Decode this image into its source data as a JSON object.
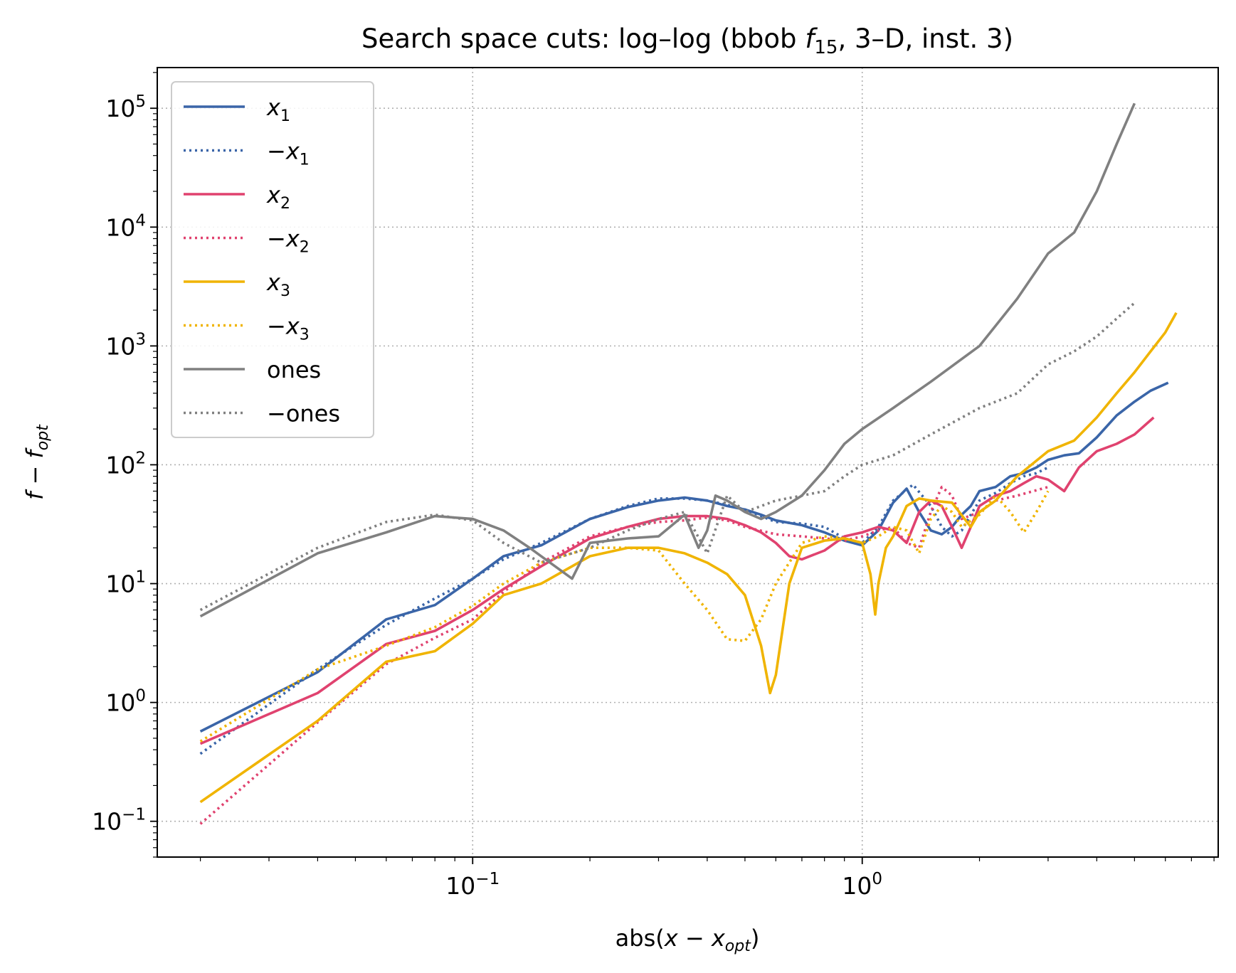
{
  "chart_data": {
    "type": "line",
    "title_parts": [
      "Search space cuts: log–log (bbob ",
      "f",
      "15",
      ", 3–D, inst. 3)"
    ],
    "xlabel_parts": [
      "abs(",
      "x",
      " − ",
      "x",
      "opt",
      ")"
    ],
    "ylabel_parts": [
      "f",
      " − ",
      "f",
      "opt"
    ],
    "xscale": "log",
    "yscale": "log",
    "xlim": [
      0.0155,
      8.2
    ],
    "ylim": [
      0.05,
      220000
    ],
    "x_ticks": [
      {
        "value": 0.1,
        "base": "10",
        "exp": "−1"
      },
      {
        "value": 1,
        "base": "10",
        "exp": "0"
      }
    ],
    "y_ticks": [
      {
        "value": 0.1,
        "base": "10",
        "exp": "−1"
      },
      {
        "value": 1,
        "base": "10",
        "exp": "0"
      },
      {
        "value": 10,
        "base": "10",
        "exp": "1"
      },
      {
        "value": 100,
        "base": "10",
        "exp": "2"
      },
      {
        "value": 1000,
        "base": "10",
        "exp": "3"
      },
      {
        "value": 10000,
        "base": "10",
        "exp": "4"
      },
      {
        "value": 100000,
        "base": "10",
        "exp": "5"
      }
    ],
    "grid": true,
    "legend_position": "top-left",
    "series": [
      {
        "name": "x1",
        "label_main": "x",
        "label_sub": "1",
        "label_prefix": "",
        "italic": true,
        "color": "#3a65a8",
        "dash": "solid",
        "points": [
          [
            0.02,
            0.57
          ],
          [
            0.04,
            1.8
          ],
          [
            0.06,
            5.0
          ],
          [
            0.08,
            6.6
          ],
          [
            0.1,
            11
          ],
          [
            0.12,
            17
          ],
          [
            0.15,
            21
          ],
          [
            0.2,
            35
          ],
          [
            0.25,
            44
          ],
          [
            0.3,
            50
          ],
          [
            0.35,
            53
          ],
          [
            0.4,
            50
          ],
          [
            0.45,
            45
          ],
          [
            0.5,
            42
          ],
          [
            0.55,
            38
          ],
          [
            0.6,
            34
          ],
          [
            0.7,
            31
          ],
          [
            0.8,
            27
          ],
          [
            0.9,
            23
          ],
          [
            1.0,
            21
          ],
          [
            1.1,
            28
          ],
          [
            1.2,
            48
          ],
          [
            1.3,
            63
          ],
          [
            1.4,
            40
          ],
          [
            1.5,
            28
          ],
          [
            1.6,
            26
          ],
          [
            1.7,
            30
          ],
          [
            1.8,
            38
          ],
          [
            1.9,
            45
          ],
          [
            2.0,
            60
          ],
          [
            2.2,
            65
          ],
          [
            2.4,
            80
          ],
          [
            2.6,
            85
          ],
          [
            2.8,
            95
          ],
          [
            3.0,
            110
          ],
          [
            3.3,
            120
          ],
          [
            3.6,
            125
          ],
          [
            4.0,
            170
          ],
          [
            4.5,
            260
          ],
          [
            5.0,
            340
          ],
          [
            5.5,
            420
          ],
          [
            6.1,
            490
          ]
        ]
      },
      {
        "name": "−x1",
        "label_main": "x",
        "label_sub": "1",
        "label_prefix": "−",
        "italic": true,
        "color": "#3a65a8",
        "dash": "dotted",
        "points": [
          [
            0.02,
            0.37
          ],
          [
            0.04,
            1.9
          ],
          [
            0.06,
            4.5
          ],
          [
            0.08,
            7.5
          ],
          [
            0.1,
            11
          ],
          [
            0.12,
            16
          ],
          [
            0.15,
            22
          ],
          [
            0.2,
            35
          ],
          [
            0.25,
            45
          ],
          [
            0.3,
            52
          ],
          [
            0.35,
            52
          ],
          [
            0.4,
            50
          ],
          [
            0.45,
            46
          ],
          [
            0.5,
            42
          ],
          [
            0.55,
            37
          ],
          [
            0.6,
            33
          ],
          [
            0.7,
            32
          ],
          [
            0.8,
            30
          ],
          [
            0.9,
            24
          ],
          [
            1.0,
            22
          ],
          [
            1.1,
            30
          ],
          [
            1.2,
            50
          ],
          [
            1.35,
            68
          ],
          [
            1.5,
            45
          ],
          [
            1.6,
            30
          ],
          [
            1.7,
            25
          ],
          [
            1.8,
            28
          ],
          [
            1.9,
            38
          ],
          [
            2.0,
            50
          ],
          [
            2.2,
            58
          ],
          [
            2.4,
            70
          ],
          [
            2.6,
            80
          ],
          [
            2.8,
            85
          ],
          [
            3.0,
            95
          ]
        ]
      },
      {
        "name": "x2",
        "label_main": "x",
        "label_sub": "2",
        "label_prefix": "",
        "italic": true,
        "color": "#e0426f",
        "dash": "solid",
        "points": [
          [
            0.02,
            0.45
          ],
          [
            0.04,
            1.2
          ],
          [
            0.06,
            3.1
          ],
          [
            0.08,
            4.0
          ],
          [
            0.1,
            6.0
          ],
          [
            0.12,
            9.0
          ],
          [
            0.15,
            14
          ],
          [
            0.2,
            24
          ],
          [
            0.25,
            30
          ],
          [
            0.3,
            35
          ],
          [
            0.35,
            37
          ],
          [
            0.4,
            37
          ],
          [
            0.45,
            35
          ],
          [
            0.5,
            31
          ],
          [
            0.55,
            27
          ],
          [
            0.6,
            22
          ],
          [
            0.65,
            17
          ],
          [
            0.7,
            16
          ],
          [
            0.8,
            19
          ],
          [
            0.9,
            25
          ],
          [
            1.0,
            27
          ],
          [
            1.1,
            30
          ],
          [
            1.2,
            28
          ],
          [
            1.3,
            22
          ],
          [
            1.4,
            40
          ],
          [
            1.5,
            50
          ],
          [
            1.6,
            45
          ],
          [
            1.7,
            30
          ],
          [
            1.8,
            20
          ],
          [
            1.9,
            30
          ],
          [
            2.0,
            45
          ],
          [
            2.2,
            55
          ],
          [
            2.4,
            60
          ],
          [
            2.6,
            70
          ],
          [
            2.8,
            80
          ],
          [
            3.0,
            75
          ],
          [
            3.3,
            60
          ],
          [
            3.6,
            95
          ],
          [
            4.0,
            130
          ],
          [
            4.5,
            150
          ],
          [
            5.0,
            180
          ],
          [
            5.6,
            250
          ]
        ]
      },
      {
        "name": "−x2",
        "label_main": "x",
        "label_sub": "2",
        "label_prefix": "−",
        "italic": true,
        "color": "#e0426f",
        "dash": "dotted",
        "points": [
          [
            0.02,
            0.095
          ],
          [
            0.04,
            0.68
          ],
          [
            0.06,
            2.1
          ],
          [
            0.08,
            3.5
          ],
          [
            0.1,
            5.0
          ],
          [
            0.12,
            8.5
          ],
          [
            0.15,
            15
          ],
          [
            0.2,
            25
          ],
          [
            0.25,
            30
          ],
          [
            0.3,
            33
          ],
          [
            0.35,
            34
          ],
          [
            0.4,
            36
          ],
          [
            0.45,
            34
          ],
          [
            0.5,
            30
          ],
          [
            0.6,
            26
          ],
          [
            0.7,
            25
          ],
          [
            0.8,
            24
          ],
          [
            0.9,
            23
          ],
          [
            1.0,
            25
          ],
          [
            1.1,
            28
          ],
          [
            1.2,
            30
          ],
          [
            1.3,
            22
          ],
          [
            1.4,
            20
          ],
          [
            1.5,
            40
          ],
          [
            1.6,
            65
          ],
          [
            1.7,
            55
          ],
          [
            1.8,
            35
          ],
          [
            2.0,
            40
          ],
          [
            2.2,
            50
          ],
          [
            2.5,
            55
          ],
          [
            3.0,
            65
          ]
        ]
      },
      {
        "name": "x3",
        "label_main": "x",
        "label_sub": "3",
        "label_prefix": "",
        "italic": true,
        "color": "#f0b400",
        "dash": "solid",
        "points": [
          [
            0.02,
            0.145
          ],
          [
            0.04,
            0.7
          ],
          [
            0.06,
            2.2
          ],
          [
            0.08,
            2.7
          ],
          [
            0.1,
            4.6
          ],
          [
            0.12,
            8.0
          ],
          [
            0.15,
            10
          ],
          [
            0.2,
            17
          ],
          [
            0.25,
            20
          ],
          [
            0.3,
            20
          ],
          [
            0.35,
            18
          ],
          [
            0.4,
            15
          ],
          [
            0.45,
            12
          ],
          [
            0.5,
            8.0
          ],
          [
            0.55,
            3.0
          ],
          [
            0.58,
            1.2
          ],
          [
            0.6,
            1.7
          ],
          [
            0.65,
            10
          ],
          [
            0.7,
            20
          ],
          [
            0.8,
            23
          ],
          [
            0.9,
            24
          ],
          [
            1.0,
            22
          ],
          [
            1.05,
            12
          ],
          [
            1.08,
            5.5
          ],
          [
            1.1,
            10
          ],
          [
            1.15,
            20
          ],
          [
            1.2,
            25
          ],
          [
            1.3,
            45
          ],
          [
            1.4,
            52
          ],
          [
            1.5,
            50
          ],
          [
            1.7,
            48
          ],
          [
            1.9,
            30
          ],
          [
            2.0,
            40
          ],
          [
            2.2,
            50
          ],
          [
            2.5,
            80
          ],
          [
            3.0,
            130
          ],
          [
            3.5,
            160
          ],
          [
            4.0,
            250
          ],
          [
            4.5,
            400
          ],
          [
            5.0,
            600
          ],
          [
            5.5,
            900
          ],
          [
            6.0,
            1300
          ],
          [
            6.4,
            1900
          ]
        ]
      },
      {
        "name": "−x3",
        "label_main": "x",
        "label_sub": "3",
        "label_prefix": "−",
        "italic": true,
        "color": "#f0b400",
        "dash": "dotted",
        "points": [
          [
            0.02,
            0.47
          ],
          [
            0.04,
            1.9
          ],
          [
            0.06,
            3.0
          ],
          [
            0.08,
            4.3
          ],
          [
            0.1,
            6.5
          ],
          [
            0.12,
            10
          ],
          [
            0.15,
            15
          ],
          [
            0.2,
            20
          ],
          [
            0.25,
            20
          ],
          [
            0.3,
            19
          ],
          [
            0.35,
            10
          ],
          [
            0.4,
            6.0
          ],
          [
            0.45,
            3.4
          ],
          [
            0.5,
            3.3
          ],
          [
            0.55,
            5.0
          ],
          [
            0.6,
            10
          ],
          [
            0.7,
            22
          ],
          [
            0.8,
            25
          ],
          [
            0.9,
            24
          ],
          [
            1.0,
            22
          ],
          [
            1.1,
            25
          ],
          [
            1.2,
            30
          ],
          [
            1.3,
            28
          ],
          [
            1.4,
            18
          ],
          [
            1.5,
            35
          ],
          [
            1.6,
            45
          ],
          [
            1.7,
            40
          ],
          [
            1.8,
            30
          ],
          [
            2.0,
            38
          ],
          [
            2.2,
            55
          ],
          [
            2.4,
            40
          ],
          [
            2.6,
            27
          ],
          [
            2.8,
            40
          ],
          [
            3.0,
            60
          ]
        ]
      },
      {
        "name": "ones",
        "label_main": "ones",
        "label_sub": "",
        "label_prefix": "",
        "italic": false,
        "color": "#808080",
        "dash": "solid",
        "points": [
          [
            0.02,
            5.3
          ],
          [
            0.04,
            18
          ],
          [
            0.06,
            27
          ],
          [
            0.08,
            37
          ],
          [
            0.1,
            35
          ],
          [
            0.12,
            28
          ],
          [
            0.14,
            20
          ],
          [
            0.18,
            11
          ],
          [
            0.2,
            22
          ],
          [
            0.25,
            24
          ],
          [
            0.3,
            25
          ],
          [
            0.35,
            38
          ],
          [
            0.38,
            20
          ],
          [
            0.4,
            28
          ],
          [
            0.42,
            55
          ],
          [
            0.45,
            50
          ],
          [
            0.5,
            40
          ],
          [
            0.55,
            35
          ],
          [
            0.6,
            40
          ],
          [
            0.7,
            55
          ],
          [
            0.8,
            90
          ],
          [
            0.9,
            150
          ],
          [
            1.0,
            200
          ],
          [
            1.2,
            300
          ],
          [
            1.5,
            500
          ],
          [
            2.0,
            1000
          ],
          [
            2.5,
            2500
          ],
          [
            3.0,
            6000
          ],
          [
            3.5,
            9000
          ],
          [
            4.0,
            20000
          ],
          [
            4.5,
            50000
          ],
          [
            5.0,
            110000
          ]
        ]
      },
      {
        "name": "−ones",
        "label_main": "ones",
        "label_sub": "",
        "label_prefix": "−",
        "italic": false,
        "color": "#808080",
        "dash": "dotted",
        "points": [
          [
            0.02,
            6.0
          ],
          [
            0.04,
            20
          ],
          [
            0.06,
            33
          ],
          [
            0.08,
            38
          ],
          [
            0.1,
            34
          ],
          [
            0.12,
            22
          ],
          [
            0.15,
            15
          ],
          [
            0.2,
            20
          ],
          [
            0.25,
            28
          ],
          [
            0.3,
            35
          ],
          [
            0.35,
            40
          ],
          [
            0.4,
            18
          ],
          [
            0.45,
            55
          ],
          [
            0.5,
            40
          ],
          [
            0.6,
            50
          ],
          [
            0.7,
            55
          ],
          [
            0.8,
            60
          ],
          [
            0.9,
            80
          ],
          [
            1.0,
            100
          ],
          [
            1.2,
            120
          ],
          [
            1.5,
            180
          ],
          [
            2.0,
            300
          ],
          [
            2.5,
            400
          ],
          [
            3.0,
            700
          ],
          [
            3.5,
            900
          ],
          [
            4.0,
            1200
          ],
          [
            4.5,
            1700
          ],
          [
            5.0,
            2300
          ]
        ]
      }
    ]
  }
}
